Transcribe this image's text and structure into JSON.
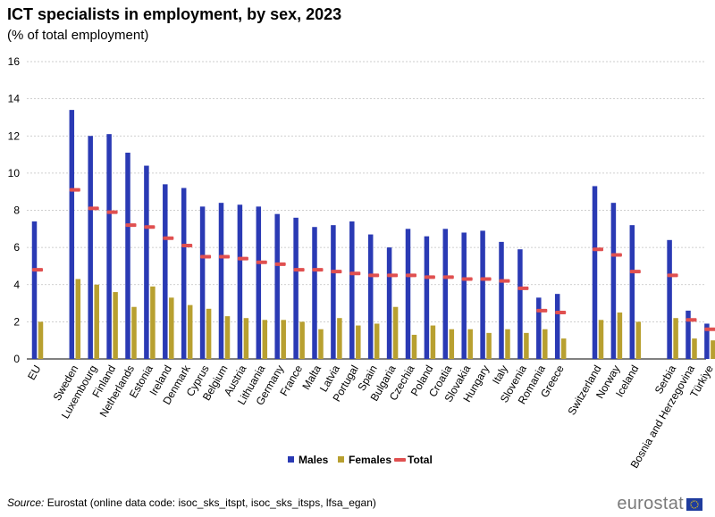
{
  "title": "ICT specialists in employment, by sex, 2023",
  "subtitle": "(% of total employment)",
  "source_label": "Source:",
  "source_text": "Eurostat (online data code: isoc_sks_itspt, isoc_sks_itsps, lfsa_egan)",
  "logo_text": "eurostat",
  "colors": {
    "males": "#2a3ab4",
    "females": "#b8a030",
    "total": "#e05050",
    "grid": "#bfbfbf"
  },
  "chart_data": {
    "type": "bar",
    "ylim": [
      0,
      16
    ],
    "yticks": [
      0,
      2,
      4,
      6,
      8,
      10,
      12,
      14,
      16
    ],
    "grid": true,
    "legend": "bottom-center",
    "groups": [
      [
        "EU"
      ],
      [
        "Sweden",
        "Luxembourg",
        "Finland",
        "Netherlands",
        "Estonia",
        "Ireland",
        "Denmark",
        "Cyprus",
        "Belgium",
        "Austria",
        "Lithuania",
        "Germany",
        "France",
        "Malta",
        "Latvia",
        "Portugal",
        "Spain",
        "Bulgaria",
        "Czechia",
        "Poland",
        "Croatia",
        "Slovakia",
        "Hungary",
        "Italy",
        "Slovenia",
        "Romania",
        "Greece"
      ],
      [
        "Switzerland",
        "Norway",
        "Iceland"
      ],
      [
        "Serbia",
        "Bosnia and Herzegovina",
        "Türkiye"
      ]
    ],
    "categories": [
      "EU",
      "Sweden",
      "Luxembourg",
      "Finland",
      "Netherlands",
      "Estonia",
      "Ireland",
      "Denmark",
      "Cyprus",
      "Belgium",
      "Austria",
      "Lithuania",
      "Germany",
      "France",
      "Malta",
      "Latvia",
      "Portugal",
      "Spain",
      "Bulgaria",
      "Czechia",
      "Poland",
      "Croatia",
      "Slovakia",
      "Hungary",
      "Italy",
      "Slovenia",
      "Romania",
      "Greece",
      "Switzerland",
      "Norway",
      "Iceland",
      "Serbia",
      "Bosnia and Herzegovina",
      "Türkiye"
    ],
    "series": [
      {
        "name": "Males",
        "kind": "bar",
        "values": [
          7.4,
          13.4,
          12.0,
          12.1,
          11.1,
          10.4,
          9.4,
          9.2,
          8.2,
          8.4,
          8.3,
          8.2,
          7.8,
          7.6,
          7.1,
          7.2,
          7.4,
          6.7,
          6.0,
          7.0,
          6.6,
          7.0,
          6.8,
          6.9,
          6.3,
          5.9,
          3.3,
          3.5,
          9.3,
          8.4,
          7.2,
          6.4,
          2.6,
          1.9
        ]
      },
      {
        "name": "Females",
        "kind": "bar",
        "values": [
          2.0,
          4.3,
          4.0,
          3.6,
          2.8,
          3.9,
          3.3,
          2.9,
          2.7,
          2.3,
          2.2,
          2.1,
          2.1,
          2.0,
          1.6,
          2.2,
          1.8,
          1.9,
          2.8,
          1.3,
          1.8,
          1.6,
          1.6,
          1.4,
          1.6,
          1.4,
          1.6,
          1.1,
          2.1,
          2.5,
          2.0,
          2.2,
          1.1,
          1.0
        ]
      },
      {
        "name": "Total",
        "kind": "marker",
        "values": [
          4.8,
          9.1,
          8.1,
          7.9,
          7.2,
          7.1,
          6.5,
          6.1,
          5.5,
          5.5,
          5.4,
          5.2,
          5.1,
          4.8,
          4.8,
          4.7,
          4.6,
          4.5,
          4.5,
          4.5,
          4.4,
          4.4,
          4.3,
          4.3,
          4.2,
          3.8,
          2.6,
          2.5,
          5.9,
          5.6,
          4.7,
          4.5,
          2.1,
          1.6
        ]
      }
    ]
  }
}
